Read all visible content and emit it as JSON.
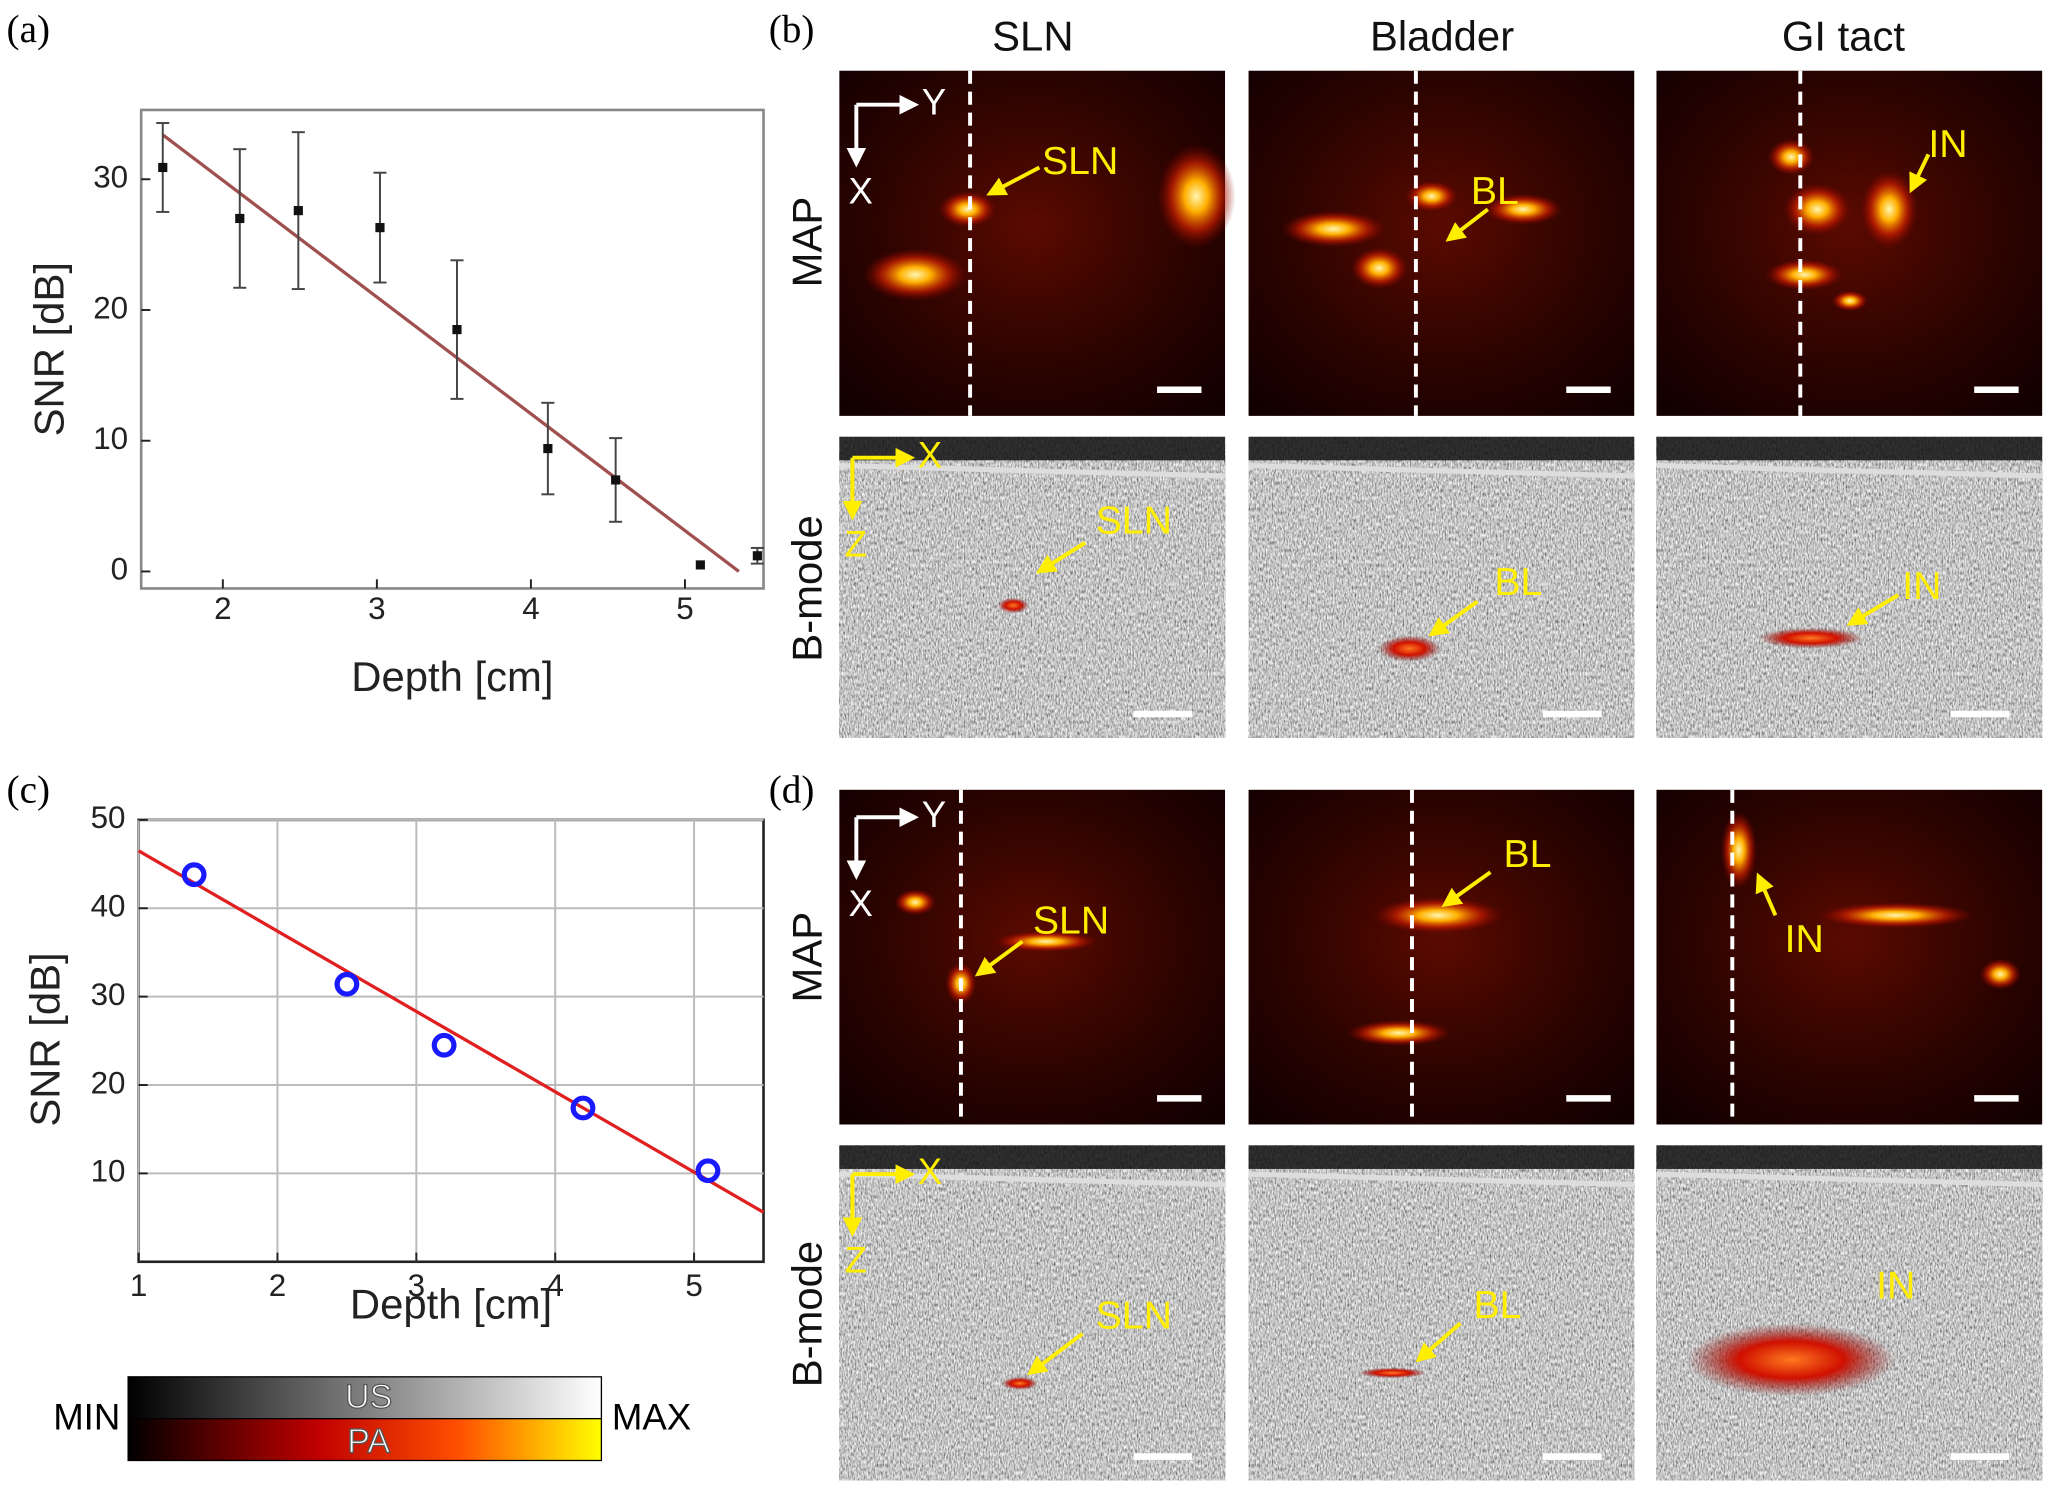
{
  "panel_labels": [
    "(a)",
    "(b)",
    "(c)",
    "(d)"
  ],
  "chart_data": [
    {
      "type": "scatter",
      "x_label": "Depth [cm]",
      "y_label": "SNR [dB]",
      "x": [
        1.61,
        2.11,
        2.49,
        3.02,
        3.52,
        4.11,
        4.55,
        5.1,
        5.47
      ],
      "values": [
        30.9,
        27,
        27.6,
        26.3,
        18.5,
        9.4,
        7,
        0.5,
        1.2
      ],
      "errors": [
        3.4,
        5.3,
        6,
        4.2,
        5.3,
        3.5,
        3.2,
        null,
        0.6
      ],
      "color": "#111111",
      "marker": "square",
      "fit": {
        "x": [
          1.61,
          5.35
        ],
        "values": [
          33.4,
          0
        ],
        "color": "#a0504f"
      },
      "xlim": [
        1.47,
        5.51
      ],
      "ylim": [
        -1.3,
        35.3
      ],
      "xticks": [
        2,
        3,
        4,
        5
      ],
      "yticks": [
        0,
        10,
        20,
        30
      ],
      "grid": false
    },
    {
      "type": "scatter",
      "x_label": "Depth [cm]",
      "y_label": "SNR [dB]",
      "x": [
        1.4,
        2.5,
        3.2,
        4.2,
        5.1
      ],
      "values": [
        43.8,
        31.4,
        24.5,
        17.4,
        10.3
      ],
      "color": "#1a1aff",
      "marker": "circle",
      "fit": {
        "x": [
          1,
          5.5
        ],
        "values": [
          46.5,
          5.6
        ],
        "color": "#e02020"
      },
      "xlim": [
        1,
        5.5
      ],
      "ylim": [
        0,
        50
      ],
      "xticks": [
        1,
        2,
        3,
        4,
        5
      ],
      "yticks": [
        10,
        20,
        30,
        40,
        50
      ],
      "grid": true
    }
  ],
  "figure_b": {
    "columns": [
      "SLN",
      "Bladder",
      "GI tact"
    ],
    "rows": [
      "MAP",
      "B-mode"
    ],
    "axes": [
      [
        "Y",
        "X"
      ],
      [
        "X",
        "Z"
      ]
    ],
    "annotations": [
      [
        "SLN",
        "BL",
        "IN"
      ],
      [
        "SLN",
        "BL",
        "IN"
      ]
    ]
  },
  "figure_d": {
    "rows": [
      "MAP",
      "B-mode"
    ],
    "axes": [
      [
        "Y",
        "X"
      ],
      [
        "X",
        "Z"
      ]
    ],
    "annotations": [
      [
        "SLN",
        "BL",
        "IN"
      ],
      [
        "SLN",
        "BL",
        "IN"
      ]
    ]
  },
  "colorbar": {
    "min": "MIN",
    "max": "MAX",
    "us": "US",
    "pa": "PA"
  }
}
